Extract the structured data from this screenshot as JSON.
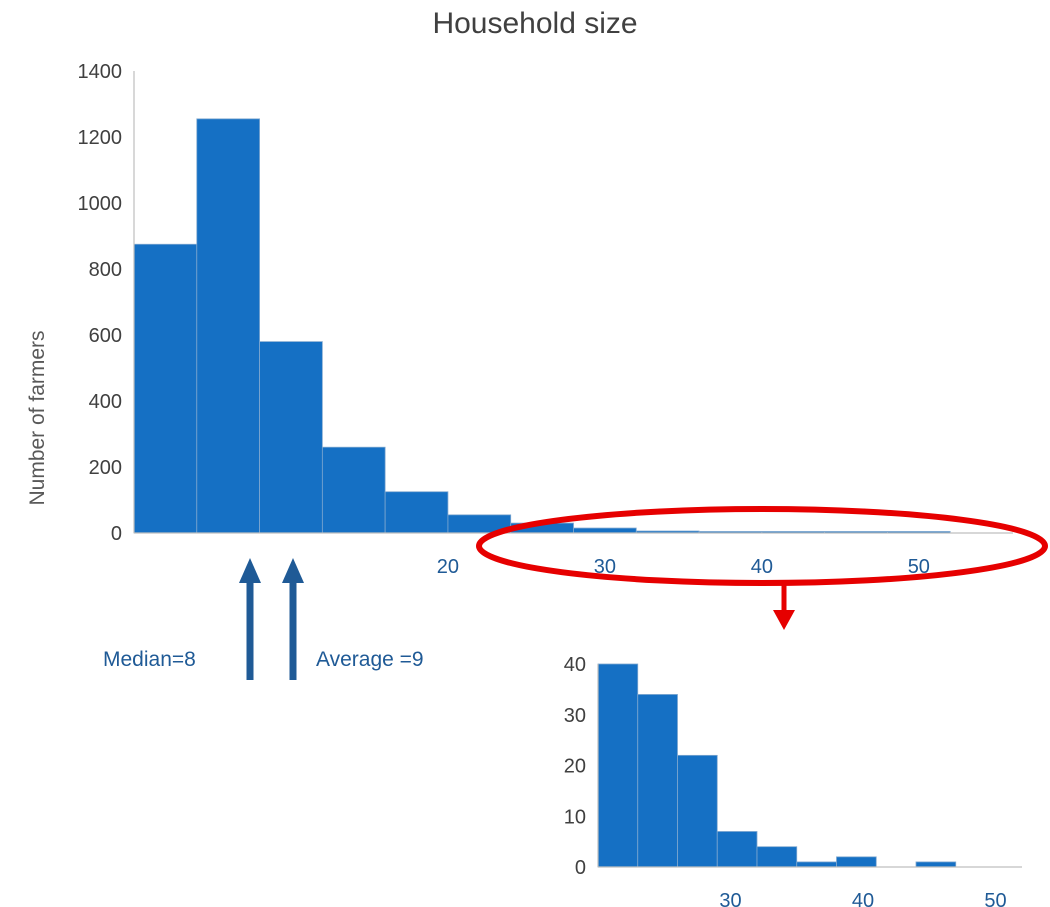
{
  "colors": {
    "bar": "#1570c4",
    "arrow": "#1f5a96",
    "highlight": "#e60000",
    "axis_text": "#404040",
    "tick_x": "#1f5a96"
  },
  "chart_data": [
    {
      "type": "bar",
      "title": "Household size",
      "xlabel": "",
      "ylabel": "Number of farmers",
      "bin_edges": [
        0,
        4,
        8,
        12,
        16,
        20,
        24,
        28,
        32,
        36,
        40,
        44,
        48,
        52,
        56
      ],
      "values": [
        875,
        1255,
        580,
        260,
        125,
        55,
        30,
        15,
        6,
        2,
        1,
        1,
        1,
        0
      ],
      "xlim": [
        0,
        56
      ],
      "ylim": [
        0,
        1400
      ],
      "yticks": [
        0,
        200,
        400,
        600,
        800,
        1000,
        1200,
        1400
      ],
      "xticks": [
        20,
        30,
        40,
        50
      ],
      "grid": false,
      "annotations": [
        {
          "text": "Median=8",
          "x": 8
        },
        {
          "text": "Average =9",
          "x": 10.5
        }
      ]
    },
    {
      "type": "bar",
      "title": "",
      "xlabel": "",
      "ylabel": "",
      "bin_edges": [
        20,
        23,
        26,
        29,
        32,
        35,
        38,
        41,
        44,
        47,
        50,
        53
      ],
      "values": [
        41,
        34,
        22,
        7,
        4,
        1,
        2,
        0,
        1,
        0,
        0
      ],
      "xlim": [
        20,
        52
      ],
      "ylim": [
        0,
        40
      ],
      "yticks": [
        0,
        10,
        20,
        30,
        40
      ],
      "xticks": [
        30,
        40,
        50
      ],
      "grid": false
    }
  ]
}
